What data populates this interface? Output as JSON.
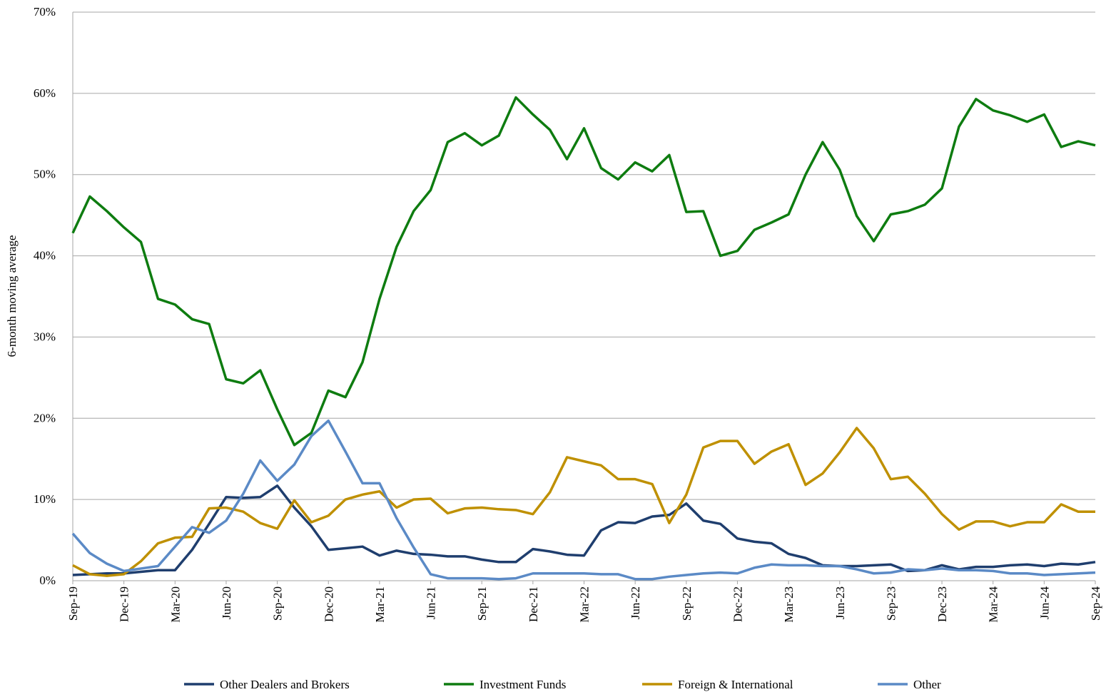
{
  "chart_data": {
    "type": "line",
    "y_label": "6-month moving average",
    "categories": [
      "Sep-19",
      null,
      null,
      "Dec-19",
      null,
      null,
      "Mar-20",
      null,
      null,
      "Jun-20",
      null,
      null,
      "Sep-20",
      null,
      null,
      "Dec-20",
      null,
      null,
      "Mar-21",
      null,
      null,
      "Jun-21",
      null,
      null,
      "Sep-21",
      null,
      null,
      "Dec-21",
      null,
      null,
      "Mar-22",
      null,
      null,
      "Jun-22",
      null,
      null,
      "Sep-22",
      null,
      null,
      "Dec-22",
      null,
      null,
      "Mar-23",
      null,
      null,
      "Jun-23",
      null,
      null,
      "Sep-23",
      null,
      null,
      "Dec-23",
      null,
      null,
      "Mar-24",
      null,
      null,
      "Jun-24",
      null,
      null,
      "Sep-24"
    ],
    "series": [
      {
        "name": "Other Dealers and Brokers",
        "color": "#1f3e6e",
        "values": [
          0.7,
          0.8,
          0.9,
          0.9,
          1.1,
          1.3,
          1.3,
          3.8,
          7.0,
          10.3,
          10.2,
          10.3,
          11.7,
          9.0,
          6.7,
          3.8,
          4.0,
          4.2,
          3.1,
          3.7,
          3.3,
          3.2,
          3.0,
          3.0,
          2.6,
          2.3,
          2.3,
          3.9,
          3.6,
          3.2,
          3.1,
          6.2,
          7.2,
          7.1,
          7.9,
          8.1,
          9.5,
          7.4,
          7.0,
          5.2,
          4.8,
          4.6,
          3.3,
          2.8,
          1.9,
          1.8,
          1.8,
          1.9,
          2.0,
          1.2,
          1.3,
          1.9,
          1.4,
          1.7,
          1.7,
          1.9,
          2.0,
          1.8,
          2.1,
          2.0,
          2.3
        ]
      },
      {
        "name": "Investment Funds",
        "color": "#0e7c10",
        "values": [
          42.8,
          47.3,
          45.5,
          43.5,
          41.7,
          34.7,
          34.0,
          32.2,
          31.6,
          24.8,
          24.3,
          25.9,
          21.1,
          16.7,
          18.2,
          23.4,
          22.6,
          26.9,
          34.7,
          41.1,
          45.5,
          48.1,
          54.0,
          55.1,
          53.6,
          54.8,
          59.5,
          57.4,
          55.5,
          51.9,
          55.7,
          50.8,
          49.4,
          51.5,
          50.4,
          52.4,
          45.4,
          45.5,
          40.0,
          40.6,
          43.2,
          44.1,
          45.1,
          50.0,
          54.0,
          50.6,
          44.9,
          41.8,
          45.1,
          45.5,
          46.3,
          48.3,
          55.9,
          59.3,
          57.9,
          57.3,
          56.5,
          57.4,
          53.4,
          54.1,
          53.6
        ]
      },
      {
        "name": "Foreign & International",
        "color": "#bf9000",
        "values": [
          1.9,
          0.8,
          0.6,
          0.8,
          2.4,
          4.6,
          5.3,
          5.4,
          8.9,
          9.0,
          8.5,
          7.1,
          6.4,
          9.9,
          7.2,
          8.0,
          10.0,
          10.6,
          11.0,
          9.0,
          10.0,
          10.1,
          8.3,
          8.9,
          9.0,
          8.8,
          8.7,
          8.2,
          10.9,
          15.2,
          14.7,
          14.2,
          12.5,
          12.5,
          11.9,
          7.1,
          10.6,
          16.4,
          17.2,
          17.2,
          14.4,
          15.9,
          16.8,
          11.8,
          13.2,
          15.8,
          18.8,
          16.3,
          12.5,
          12.8,
          10.7,
          8.2,
          6.3,
          7.3,
          7.3,
          6.7,
          7.2,
          7.2,
          9.4,
          8.5,
          8.5
        ]
      },
      {
        "name": "Other",
        "color": "#5b8ac6",
        "values": [
          5.8,
          3.4,
          2.1,
          1.2,
          1.5,
          1.8,
          4.2,
          6.6,
          5.9,
          7.4,
          10.7,
          14.8,
          12.3,
          14.3,
          17.8,
          19.7,
          15.9,
          12.0,
          12.0,
          7.7,
          4.1,
          0.8,
          0.3,
          0.3,
          0.3,
          0.2,
          0.3,
          0.9,
          0.9,
          0.9,
          0.9,
          0.8,
          0.8,
          0.2,
          0.2,
          0.5,
          0.7,
          0.9,
          1.0,
          0.9,
          1.6,
          2.0,
          1.9,
          1.9,
          1.8,
          1.8,
          1.4,
          0.9,
          1.0,
          1.4,
          1.3,
          1.5,
          1.3,
          1.3,
          1.2,
          0.9,
          0.9,
          0.7,
          0.8,
          0.9,
          1.0
        ]
      }
    ],
    "ylim": [
      0,
      70
    ],
    "yticks": [
      {
        "value": 0,
        "label": "0%"
      },
      {
        "value": 10,
        "label": "10%"
      },
      {
        "value": 20,
        "label": "20%"
      },
      {
        "value": 30,
        "label": "30%"
      },
      {
        "value": 40,
        "label": "40%"
      },
      {
        "value": 50,
        "label": "50%"
      },
      {
        "value": 60,
        "label": "60%"
      },
      {
        "value": 70,
        "label": "70%"
      }
    ],
    "grid": true,
    "legend": "bottom"
  }
}
